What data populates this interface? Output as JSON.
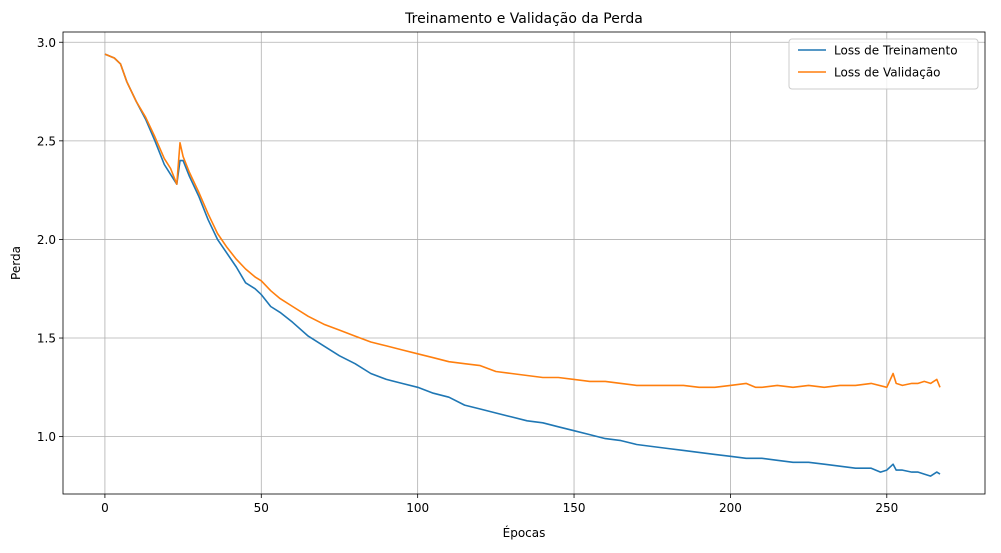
{
  "chart_data": {
    "type": "line",
    "title": "Treinamento e Validação da Perda",
    "xlabel": "Épocas",
    "ylabel": "Perda",
    "xlim": [
      -13.4,
      281.4
    ],
    "ylim": [
      0.709,
      3.052
    ],
    "xticks": [
      0,
      50,
      100,
      150,
      200,
      250
    ],
    "yticks": [
      1.0,
      1.5,
      2.0,
      2.5,
      3.0
    ],
    "ytick_labels": [
      "1.0",
      "1.5",
      "2.0",
      "2.5",
      "3.0"
    ],
    "grid": true,
    "legend_position": "top-right",
    "series": [
      {
        "name": "Loss de Treinamento",
        "color": "#1f77b4",
        "x": [
          0,
          3,
          5,
          7,
          10,
          13,
          16,
          19,
          21,
          23,
          24,
          25,
          27,
          30,
          33,
          36,
          39,
          42,
          45,
          48,
          50,
          53,
          56,
          60,
          65,
          70,
          75,
          80,
          85,
          90,
          95,
          100,
          105,
          110,
          115,
          120,
          125,
          130,
          135,
          140,
          145,
          150,
          155,
          160,
          165,
          170,
          175,
          180,
          185,
          190,
          195,
          200,
          205,
          210,
          215,
          220,
          225,
          230,
          235,
          240,
          245,
          248,
          250,
          252,
          253,
          255,
          258,
          260,
          262,
          264,
          266,
          267
        ],
        "y": [
          2.94,
          2.92,
          2.89,
          2.8,
          2.7,
          2.61,
          2.5,
          2.38,
          2.33,
          2.28,
          2.4,
          2.4,
          2.32,
          2.22,
          2.1,
          2.0,
          1.93,
          1.86,
          1.78,
          1.75,
          1.72,
          1.66,
          1.63,
          1.58,
          1.51,
          1.46,
          1.41,
          1.37,
          1.32,
          1.29,
          1.27,
          1.25,
          1.22,
          1.2,
          1.16,
          1.14,
          1.12,
          1.1,
          1.08,
          1.07,
          1.05,
          1.03,
          1.01,
          0.99,
          0.98,
          0.96,
          0.95,
          0.94,
          0.93,
          0.92,
          0.91,
          0.9,
          0.89,
          0.89,
          0.88,
          0.87,
          0.87,
          0.86,
          0.85,
          0.84,
          0.84,
          0.82,
          0.83,
          0.86,
          0.83,
          0.83,
          0.82,
          0.82,
          0.81,
          0.8,
          0.82,
          0.81
        ]
      },
      {
        "name": "Loss de Validação",
        "color": "#ff7f0e",
        "x": [
          0,
          3,
          5,
          7,
          10,
          13,
          16,
          19,
          21,
          23,
          24,
          25,
          27,
          30,
          33,
          36,
          39,
          42,
          45,
          48,
          50,
          53,
          56,
          60,
          65,
          70,
          75,
          80,
          85,
          90,
          95,
          100,
          105,
          110,
          115,
          120,
          125,
          130,
          135,
          140,
          145,
          150,
          155,
          160,
          165,
          170,
          175,
          180,
          185,
          190,
          195,
          200,
          205,
          208,
          210,
          215,
          220,
          225,
          230,
          235,
          240,
          245,
          250,
          252,
          253,
          255,
          258,
          260,
          262,
          264,
          266,
          267
        ],
        "y": [
          2.94,
          2.92,
          2.89,
          2.8,
          2.7,
          2.62,
          2.52,
          2.41,
          2.36,
          2.28,
          2.49,
          2.42,
          2.34,
          2.24,
          2.13,
          2.03,
          1.96,
          1.9,
          1.85,
          1.81,
          1.79,
          1.74,
          1.7,
          1.66,
          1.61,
          1.57,
          1.54,
          1.51,
          1.48,
          1.46,
          1.44,
          1.42,
          1.4,
          1.38,
          1.37,
          1.36,
          1.33,
          1.32,
          1.31,
          1.3,
          1.3,
          1.29,
          1.28,
          1.28,
          1.27,
          1.26,
          1.26,
          1.26,
          1.26,
          1.25,
          1.25,
          1.26,
          1.27,
          1.25,
          1.25,
          1.26,
          1.25,
          1.26,
          1.25,
          1.26,
          1.26,
          1.27,
          1.25,
          1.32,
          1.27,
          1.26,
          1.27,
          1.27,
          1.28,
          1.27,
          1.29,
          1.25
        ]
      }
    ]
  }
}
